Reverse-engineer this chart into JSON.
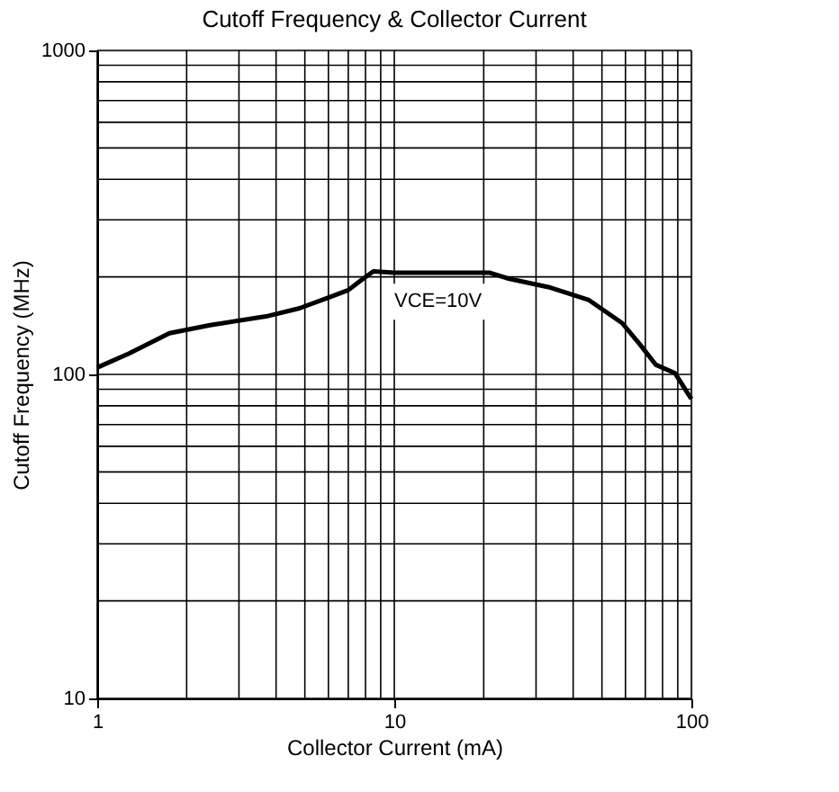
{
  "chart_data": {
    "type": "line",
    "title": "Cutoff Frequency & Collector Current",
    "xlabel": "Collector Current (mA)",
    "ylabel": "Cutoff Frequency (MHz)",
    "log": "xy",
    "xlim": [
      1,
      100
    ],
    "xticks": [
      1,
      10,
      100
    ],
    "ylim": [
      10,
      1000
    ],
    "yticks": [
      10,
      100,
      1000
    ],
    "grid": true,
    "marker": "none",
    "line_style": "solid",
    "annotations": [
      "VCE=10V"
    ],
    "series": [
      {
        "color": "#000000",
        "x": [
          1,
          1.28,
          1.75,
          2.4,
          3.7,
          4.8,
          5.95,
          7.0,
          7.6,
          8.5,
          10,
          15,
          21,
          24,
          33,
          45,
          58.5,
          67,
          76,
          88,
          100
        ],
        "values": [
          105,
          116,
          134,
          142,
          151,
          160,
          172,
          182,
          193,
          208,
          206,
          206,
          206,
          198,
          186,
          170,
          144,
          124,
          107,
          101,
          84
        ]
      }
    ]
  }
}
